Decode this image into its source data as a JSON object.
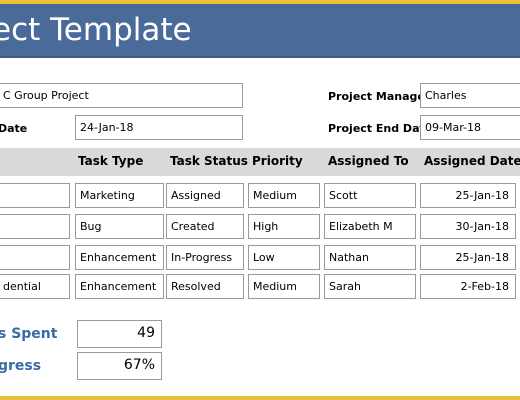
{
  "header": {
    "title": "ect Template"
  },
  "project": {
    "name_value": "C Group Project",
    "date_label": "Date",
    "start_date": "24-Jan-18",
    "manager_label": "Project Manager",
    "manager_value": "Charles",
    "end_date_label": "Project End Date",
    "end_date_value": "09-Mar-18"
  },
  "table": {
    "columns": [
      "Task Type",
      "Task Status",
      "Priority",
      "Assigned To",
      "Assigned Date"
    ],
    "rows": [
      {
        "task": "",
        "type": "Marketing",
        "status": "Assigned",
        "priority": "Medium",
        "assignee": "Scott",
        "date": "25-Jan-18"
      },
      {
        "task": "",
        "type": "Bug",
        "status": "Created",
        "priority": "High",
        "assignee": "Elizabeth M",
        "date": "30-Jan-18"
      },
      {
        "task": "",
        "type": "Enhancement",
        "status": "In-Progress",
        "priority": "Low",
        "assignee": "Nathan",
        "date": "25-Jan-18"
      },
      {
        "task": "dential",
        "type": "Enhancement",
        "status": "Resolved",
        "priority": "Medium",
        "assignee": "Sarah",
        "date": "2-Feb-18"
      }
    ]
  },
  "summary": {
    "hours_label": "s Spent",
    "hours_value": "49",
    "progress_label": "gress",
    "progress_value": "67%"
  },
  "colors": {
    "banner": "#4a6a99",
    "accent_border": "#e8c23a",
    "summary_label": "#3c6aa6",
    "header_band": "#d9d9d9"
  }
}
